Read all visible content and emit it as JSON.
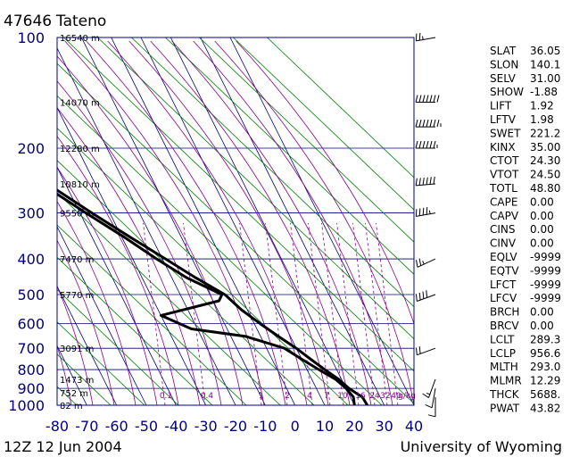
{
  "station": {
    "id": "47646",
    "name": "Tateno"
  },
  "footer": {
    "datetime": "12Z 12 Jun 2004",
    "source": "University of Wyoming"
  },
  "chart_data": {
    "type": "skew-t",
    "xlabel": "",
    "ylabel": "",
    "x_ticks": [
      -80,
      -70,
      -60,
      -50,
      -40,
      -30,
      -20,
      -10,
      0,
      10,
      20,
      30,
      40
    ],
    "pressure_ticks": [
      100,
      200,
      300,
      400,
      500,
      600,
      700,
      800,
      900,
      1000
    ],
    "height_labels": [
      {
        "p": 100,
        "label": "16540 m"
      },
      {
        "p": 150,
        "label": "14070 m"
      },
      {
        "p": 200,
        "label": "12280 m"
      },
      {
        "p": 250,
        "label": "10810 m"
      },
      {
        "p": 300,
        "label": "9550 m"
      },
      {
        "p": 400,
        "label": "7470 m"
      },
      {
        "p": 500,
        "label": "5770 m"
      },
      {
        "p": 700,
        "label": "3091 m"
      },
      {
        "p": 850,
        "label": "1473 m"
      },
      {
        "p": 925,
        "label": "752 m"
      },
      {
        "p": 1000,
        "label": "82 m"
      }
    ],
    "mixing_ratio_labels": [
      "0.1",
      "0.4",
      "1",
      "2",
      "4",
      "7",
      "10",
      "16",
      "24",
      "32",
      "40",
      "g/kg"
    ],
    "series": [
      {
        "points": [
          {
            "p": 100,
            "t": -69
          },
          {
            "p": 150,
            "t": -67
          },
          {
            "p": 200,
            "t": -58
          },
          {
            "p": 250,
            "t": -46
          },
          {
            "p": 300,
            "t": -36
          },
          {
            "p": 350,
            "t": -27
          },
          {
            "p": 400,
            "t": -19
          },
          {
            "p": 450,
            "t": -12
          },
          {
            "p": 500,
            "t": -5
          },
          {
            "p": 550,
            "t": -2
          },
          {
            "p": 600,
            "t": 2
          },
          {
            "p": 650,
            "t": 6
          },
          {
            "p": 700,
            "t": 10
          },
          {
            "p": 750,
            "t": 13
          },
          {
            "p": 800,
            "t": 16
          },
          {
            "p": 850,
            "t": 19
          },
          {
            "p": 900,
            "t": 21
          },
          {
            "p": 925,
            "t": 22.5
          },
          {
            "p": 950,
            "t": 24
          },
          {
            "p": 1000,
            "t": 24.3
          }
        ]
      },
      {
        "points": [
          {
            "p": 250,
            "t": -48
          },
          {
            "p": 300,
            "t": -38
          },
          {
            "p": 350,
            "t": -29
          },
          {
            "p": 400,
            "t": -22
          },
          {
            "p": 450,
            "t": -15
          },
          {
            "p": 500,
            "t": -6
          },
          {
            "p": 520,
            "t": -8
          },
          {
            "p": 570,
            "t": -30
          },
          {
            "p": 620,
            "t": -22
          },
          {
            "p": 650,
            "t": -5
          },
          {
            "p": 700,
            "t": 6
          },
          {
            "p": 750,
            "t": 10
          },
          {
            "p": 800,
            "t": 14
          },
          {
            "p": 850,
            "t": 18
          },
          {
            "p": 900,
            "t": 20
          },
          {
            "p": 950,
            "t": 21
          },
          {
            "p": 1000,
            "t": 20
          }
        ]
      }
    ],
    "wind_barbs": [
      {
        "p": 100,
        "dir": 260,
        "spd": 25
      },
      {
        "p": 150,
        "dir": 270,
        "spd": 70
      },
      {
        "p": 175,
        "dir": 270,
        "spd": 75
      },
      {
        "p": 200,
        "dir": 270,
        "spd": 65
      },
      {
        "p": 250,
        "dir": 265,
        "spd": 60
      },
      {
        "p": 300,
        "dir": 260,
        "spd": 45
      },
      {
        "p": 400,
        "dir": 245,
        "spd": 25
      },
      {
        "p": 500,
        "dir": 250,
        "spd": 40
      },
      {
        "p": 700,
        "dir": 250,
        "spd": 20
      },
      {
        "p": 850,
        "dir": 200,
        "spd": 15
      },
      {
        "p": 900,
        "dir": 190,
        "spd": 10
      },
      {
        "p": 950,
        "dir": 180,
        "spd": 10
      }
    ]
  },
  "indices": [
    {
      "key": "SLAT",
      "value": "36.05"
    },
    {
      "key": "SLON",
      "value": "140.1"
    },
    {
      "key": "SELV",
      "value": "31.00"
    },
    {
      "key": "SHOW",
      "value": "-1.88"
    },
    {
      "key": "LIFT",
      "value": "1.92"
    },
    {
      "key": "LFTV",
      "value": "1.98"
    },
    {
      "key": "SWET",
      "value": "221.2"
    },
    {
      "key": "KINX",
      "value": "35.00"
    },
    {
      "key": "CTOT",
      "value": "24.30"
    },
    {
      "key": "VTOT",
      "value": "24.50"
    },
    {
      "key": "TOTL",
      "value": "48.80"
    },
    {
      "key": "CAPE",
      "value": "0.00"
    },
    {
      "key": "CAPV",
      "value": "0.00"
    },
    {
      "key": "CINS",
      "value": "0.00"
    },
    {
      "key": "CINV",
      "value": "0.00"
    },
    {
      "key": "EQLV",
      "value": "-9999"
    },
    {
      "key": "EQTV",
      "value": "-9999"
    },
    {
      "key": "LFCT",
      "value": "-9999"
    },
    {
      "key": "LFCV",
      "value": "-9999"
    },
    {
      "key": "BRCH",
      "value": "0.00"
    },
    {
      "key": "BRCV",
      "value": "0.00"
    },
    {
      "key": "LCLT",
      "value": "289.3"
    },
    {
      "key": "LCLP",
      "value": "956.6"
    },
    {
      "key": "MLTH",
      "value": "293.0"
    },
    {
      "key": "MLMR",
      "value": "12.29"
    },
    {
      "key": "THCK",
      "value": "5688."
    },
    {
      "key": "PWAT",
      "value": "43.82"
    }
  ],
  "colors": {
    "frame": "#000080",
    "grid": "#000080",
    "isotherm": "#000080",
    "dry_adiabat": "#008000",
    "moist_adiabat": "#8b008b",
    "mixing_ratio": "#8b008b",
    "trace": "#000000",
    "axis_text": "#000080",
    "text": "#000000"
  }
}
